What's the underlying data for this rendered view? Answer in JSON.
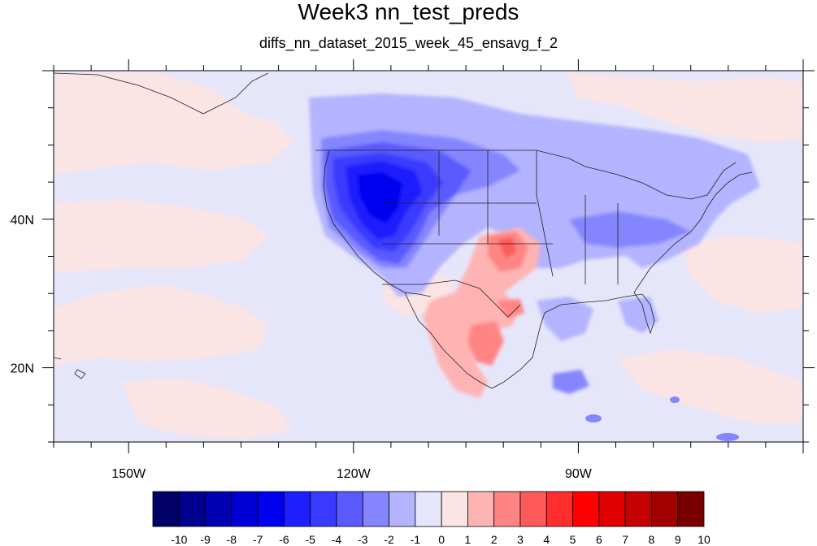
{
  "title": "Week3 nn_test_preds",
  "subtitle": "diffs_nn_dataset_2015_week_45_ensavg_f_2",
  "map": {
    "lon_range": [
      -160,
      -60
    ],
    "lat_range": [
      10,
      60
    ],
    "lon_ticks": [
      {
        "value": -150,
        "label": "150W"
      },
      {
        "value": -120,
        "label": "120W"
      },
      {
        "value": -90,
        "label": "90W"
      }
    ],
    "lat_ticks": [
      {
        "value": 40,
        "label": "40N"
      },
      {
        "value": 20,
        "label": "20N"
      }
    ]
  },
  "colorbar": {
    "levels": [
      "-10",
      "-9",
      "-8",
      "-7",
      "-6",
      "-5",
      "-4",
      "-3",
      "-2",
      "-1",
      "0",
      "1",
      "2",
      "3",
      "4",
      "5",
      "6",
      "7",
      "8",
      "9",
      "10"
    ],
    "colors": [
      "#000066",
      "#00008f",
      "#0000b3",
      "#0000d6",
      "#0000f0",
      "#1e1eff",
      "#3a3aff",
      "#5a5aff",
      "#8585ff",
      "#b3b3ff",
      "#e6e6fa",
      "#fbe4e4",
      "#ffb3b3",
      "#ff8585",
      "#ff5a5a",
      "#ff2e2e",
      "#ff0000",
      "#e00000",
      "#c40000",
      "#a30000",
      "#7a0000"
    ]
  }
}
